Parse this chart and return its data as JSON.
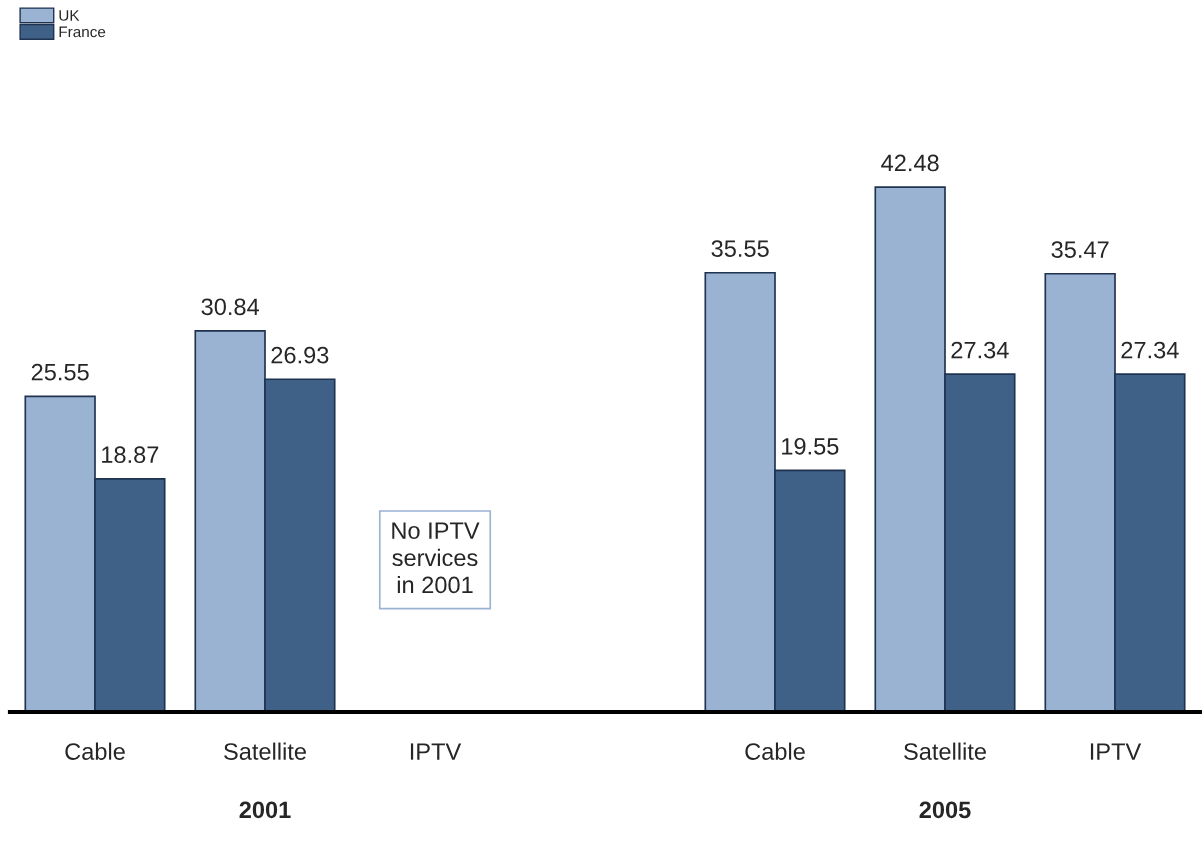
{
  "chart_data": {
    "type": "bar",
    "categories": [
      "Cable",
      "Satellite",
      "IPTV",
      null,
      "Cable",
      "Satellite",
      "IPTV"
    ],
    "series": [
      {
        "name": "UK",
        "color": "#9bb3d3",
        "values": [
          25.55,
          30.84,
          null,
          null,
          35.55,
          42.48,
          35.47
        ]
      },
      {
        "name": "France",
        "color": "#3f6188",
        "values": [
          18.87,
          26.93,
          null,
          null,
          19.55,
          27.34,
          27.34
        ]
      }
    ],
    "data_labels": true,
    "legend": "top left",
    "grid": false,
    "annotations": [
      "No IPTV\nservices\nin 2001",
      "2001",
      "2005"
    ]
  }
}
